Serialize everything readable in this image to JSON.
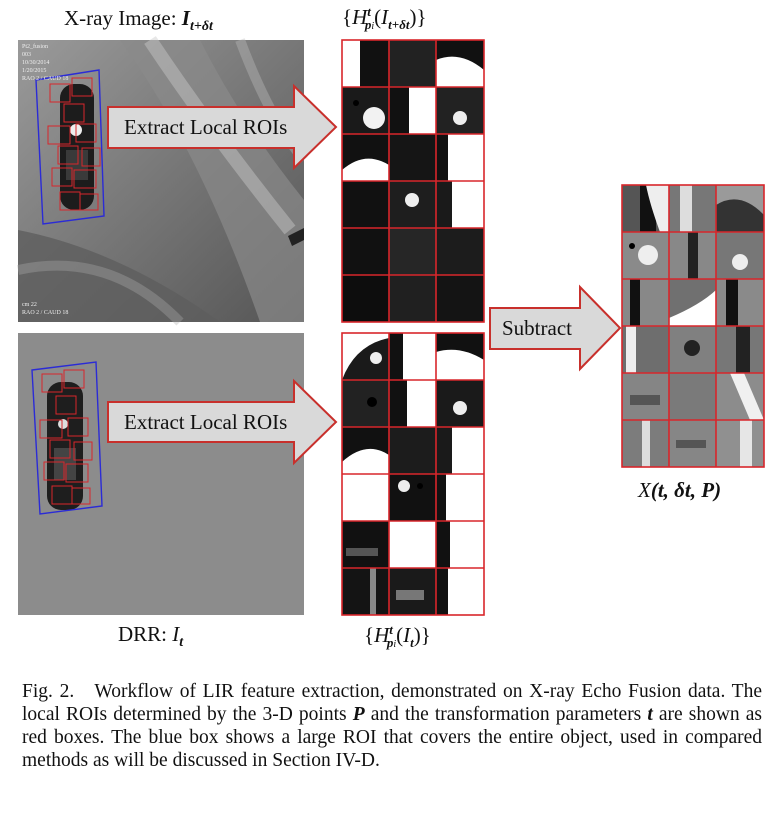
{
  "top_image_title": {
    "prefix": "X-ray Image: ",
    "symbol": "I",
    "subscript": "t+δt"
  },
  "bottom_image_title": {
    "prefix": "DRR: ",
    "symbol": "I",
    "subscript": "t"
  },
  "top_rois_label": {
    "open": "{",
    "symbol": "H",
    "sup": "t",
    "sub": "p",
    "sub_index": "i",
    "arg": "I",
    "arg_sub": "t+δt",
    "close": "}"
  },
  "bottom_rois_label": {
    "open": "{",
    "symbol": "H",
    "sup": "t",
    "sub": "p",
    "sub_index": "i",
    "arg": "I",
    "arg_sub": "t",
    "close": "}"
  },
  "output_label": {
    "symbol": "X",
    "args": "(t, δt, P)"
  },
  "arrows": {
    "extract_top": "Extract Local ROIs",
    "extract_bottom": "Extract Local ROIs",
    "subtract": "Subtract"
  },
  "overlay_text": {
    "line1": "Pt2_fusion",
    "line2": "003",
    "line3": "10/30/2014",
    "line4": "1/20/2015",
    "line5": "RAO 2 / CAUD 18",
    "bottom1": "cm 22",
    "bottom2": "RAO 2 / CAUD 18"
  },
  "caption": {
    "fig": "Fig. 2.",
    "text_a": "Workflow of LIR feature extraction, demonstrated on X-ray Echo Fusion data. The local ROIs determined by the 3-D points ",
    "sym_P": "P",
    "text_b": " and the transformation parameters ",
    "sym_t": "t",
    "text_c": " are shown as red boxes. The blue box shows a large ROI that covers the entire object, used in compared methods as will be discussed in Section IV-D."
  },
  "colors": {
    "roi_border": "#d8262b",
    "large_roi": "#2b2bd6",
    "arrow_fill": "#d9d9d9",
    "arrow_stroke": "#c8302c",
    "drr_bg": "#8c8c8c"
  }
}
